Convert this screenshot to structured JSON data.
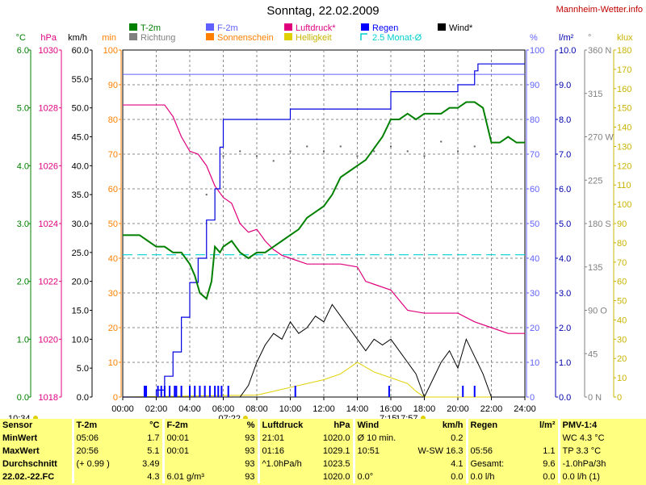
{
  "title": "Sonntag, 22.02.2009",
  "site": "Mannheim-Wetter.info",
  "legend": [
    {
      "label": "T-2m",
      "color": "#008000",
      "type": "box"
    },
    {
      "label": "Richtung",
      "color": "#808080",
      "type": "box"
    },
    {
      "label": "F-2m",
      "color": "#6060ff",
      "type": "box"
    },
    {
      "label": "Sonnenschein",
      "color": "#ff8000",
      "type": "box"
    },
    {
      "label": "Luftdruck*",
      "color": "#e0007e",
      "type": "box"
    },
    {
      "label": "Helligkeit",
      "color": "#e0d000",
      "type": "box"
    },
    {
      "label": "Regen",
      "color": "#0000ff",
      "type": "box"
    },
    {
      "label": "2.5 Monat-Ø",
      "color": "#00d0d0",
      "type": "bracket"
    },
    {
      "label": "Wind*",
      "color": "#000000",
      "type": "box"
    }
  ],
  "axis_units": {
    "temp": {
      "text": "°C",
      "color": "#008000"
    },
    "pressure": {
      "text": "hPa",
      "color": "#e0007e"
    },
    "wind": {
      "text": "km/h",
      "color": "#000000"
    },
    "sunmin": {
      "text": "min",
      "color": "#ff8000"
    },
    "humidity": {
      "text": "%",
      "color": "#6060ff"
    },
    "rain": {
      "text": "l/m²",
      "color": "#0000b0"
    },
    "dir": {
      "text": "°",
      "color": "#808080"
    },
    "lux": {
      "text": "klux",
      "color": "#c8b400"
    }
  },
  "axis_ticks": {
    "temp": [
      "0.0",
      "1.0",
      "2.0",
      "3.0",
      "4.0",
      "5.0",
      "6.0"
    ],
    "pressure": [
      "1018",
      "1020",
      "1022",
      "1024",
      "1026",
      "1028",
      "1030"
    ],
    "wind": [
      "0.0",
      "5.0",
      "10.0",
      "15.0",
      "20.0",
      "25.0",
      "30.0",
      "35.0",
      "40.0",
      "45.0",
      "50.0",
      "55.0",
      "60.0"
    ],
    "sunmin": [
      "0",
      "10",
      "20",
      "30",
      "40",
      "50",
      "60",
      "70",
      "80",
      "90",
      "100"
    ],
    "humidity": [
      "0",
      "10",
      "20",
      "30",
      "40",
      "50",
      "60",
      "70",
      "80",
      "90",
      "100"
    ],
    "rain": [
      "0.0",
      "1.0",
      "2.0",
      "3.0",
      "4.0",
      "5.0",
      "6.0",
      "7.0",
      "8.0",
      "9.0",
      "10.0"
    ],
    "dir": [
      "0 N",
      "45",
      "90 O",
      "135",
      "180 S",
      "225",
      "270 W",
      "315",
      "360 N"
    ],
    "lux": [
      "0",
      "10",
      "20",
      "30",
      "40",
      "50",
      "60",
      "70",
      "80",
      "90",
      "100",
      "110",
      "120",
      "130",
      "140",
      "150",
      "160",
      "170",
      "180"
    ],
    "time": [
      "00:00",
      "02:00",
      "04:00",
      "06:00",
      "08:00",
      "10:00",
      "12:00",
      "14:00",
      "16:00",
      "18:00",
      "20:00",
      "22:00",
      "24:00"
    ]
  },
  "markers": {
    "now": "10:34",
    "sunrise": "07:22",
    "sunset": "17:57",
    "mid": "7:15"
  },
  "chart_data": {
    "type": "line",
    "xlabel": "",
    "x_range_hours": [
      0,
      24
    ],
    "temperature_c": {
      "x": [
        0,
        1,
        1.5,
        2,
        2.5,
        3,
        3.5,
        4,
        4.3,
        4.6,
        5,
        5.1,
        5.3,
        5.5,
        5.8,
        6,
        6.5,
        7,
        7.5,
        8,
        8.5,
        9,
        9.5,
        10,
        10.5,
        11,
        11.5,
        12,
        12.5,
        13,
        13.5,
        14,
        14.5,
        15,
        15.5,
        16,
        16.5,
        17,
        17.5,
        18,
        18.5,
        19,
        19.5,
        20,
        20.5,
        21,
        21.5,
        22,
        22.5,
        23,
        23.5,
        24
      ],
      "y": [
        2.8,
        2.8,
        2.7,
        2.6,
        2.6,
        2.5,
        2.5,
        2.3,
        2.1,
        1.8,
        1.7,
        1.8,
        2.0,
        2.6,
        2.5,
        2.6,
        2.7,
        2.5,
        2.4,
        2.5,
        2.5,
        2.6,
        2.7,
        2.8,
        2.9,
        3.1,
        3.2,
        3.3,
        3.5,
        3.8,
        3.9,
        4.0,
        4.1,
        4.3,
        4.5,
        4.8,
        4.8,
        4.9,
        4.8,
        4.9,
        4.9,
        4.9,
        5.0,
        5.0,
        5.1,
        5.1,
        5.0,
        4.4,
        4.4,
        4.5,
        4.4,
        4.4
      ]
    },
    "humidity_pct": {
      "x": [
        0,
        24
      ],
      "y": [
        93,
        93
      ]
    },
    "pressure_hpa": {
      "x": [
        0,
        2.5,
        3,
        3.5,
        4,
        4.5,
        5,
        5.5,
        6,
        6.5,
        7,
        7.5,
        8,
        8.5,
        9,
        9.5,
        10,
        11,
        12,
        13,
        14,
        14.5,
        15,
        16,
        17,
        18,
        19,
        20,
        21,
        22,
        23,
        24
      ],
      "y": [
        1028.1,
        1028.1,
        1027.7,
        1027.0,
        1026.5,
        1026.4,
        1026.0,
        1025.3,
        1024.9,
        1024.7,
        1024.0,
        1023.7,
        1023.8,
        1023.4,
        1023.1,
        1022.9,
        1022.8,
        1022.6,
        1022.6,
        1022.6,
        1022.5,
        1022.0,
        1021.9,
        1021.7,
        1021.0,
        1020.9,
        1020.9,
        1020.9,
        1020.6,
        1020.4,
        1020.2,
        1020.2
      ]
    },
    "rain_cumulative_lm2": {
      "x": [
        0,
        1.8,
        2,
        2.5,
        3,
        3.5,
        4,
        4.5,
        5,
        5.5,
        5.8,
        6,
        6.5,
        7,
        8,
        10,
        11,
        12,
        13,
        14,
        15,
        16,
        17,
        18,
        19,
        20,
        21,
        21.2,
        23,
        24
      ],
      "y": [
        0,
        0,
        0.2,
        0.6,
        1.3,
        2.3,
        3.3,
        4.0,
        5.1,
        6.0,
        7.2,
        8.0,
        8.0,
        8.0,
        8.0,
        8.3,
        8.3,
        8.3,
        8.3,
        8.3,
        8.3,
        8.8,
        8.8,
        8.8,
        8.8,
        9.0,
        9.4,
        9.6,
        9.6,
        9.6
      ]
    },
    "rain_avg_2_5_month_lm2": 4.1,
    "wind_kmh": {
      "x": [
        0,
        7,
        7.5,
        8,
        8.5,
        9,
        9.5,
        10,
        10.5,
        11,
        11.5,
        12,
        12.5,
        13,
        13.5,
        14,
        14.5,
        15,
        15.5,
        16,
        16.5,
        17,
        17.5,
        18,
        18.5,
        19,
        19.5,
        20,
        20.5,
        21,
        21.5,
        22,
        24
      ],
      "y": [
        0,
        0,
        2,
        6,
        9,
        11,
        10,
        13,
        11,
        12,
        14,
        13,
        16,
        14,
        12,
        10,
        8,
        10,
        9,
        10,
        8,
        6,
        4,
        0,
        3,
        6,
        8,
        5,
        10,
        7,
        4,
        0,
        0
      ]
    },
    "brightness_klux": {
      "x": [
        0,
        8,
        9,
        10,
        11,
        12,
        13,
        14,
        15,
        16,
        17,
        17.5,
        18,
        24
      ],
      "y": [
        0,
        1,
        3,
        5,
        7,
        9,
        12,
        18,
        13,
        10,
        7,
        3,
        0,
        0
      ]
    },
    "sunshine_min": {
      "x": [
        0,
        24
      ],
      "y": [
        0,
        0
      ]
    },
    "wind_direction_deg": {
      "x": [
        5,
        6,
        7,
        8,
        9,
        10,
        11,
        12,
        13,
        14,
        15,
        16,
        17,
        18,
        19,
        20,
        21
      ],
      "y": [
        210,
        250,
        255,
        250,
        245,
        255,
        260,
        255,
        260,
        250,
        255,
        260,
        255,
        250,
        265,
        255,
        260
      ]
    }
  },
  "stats": {
    "headers": [
      {
        "name": "Sensor",
        "unit": ""
      },
      {
        "name": "T-2m",
        "unit": "°C"
      },
      {
        "name": "F-2m",
        "unit": "%"
      },
      {
        "name": "Luftdruck",
        "unit": "hPa"
      },
      {
        "name": "Wind",
        "unit": "km/h"
      },
      {
        "name": "Regen",
        "unit": "l/m²"
      },
      {
        "name": "PMV-1:4",
        "unit": ""
      }
    ],
    "rows": [
      {
        "label": "MinWert",
        "cells": [
          [
            "05:06",
            "1.7"
          ],
          [
            "00:01",
            "93"
          ],
          [
            "21:01",
            "1020.0"
          ],
          [
            "Ø 10 min.",
            "0.2"
          ],
          [
            "",
            ""
          ],
          [
            "WC 4.3 °C",
            ""
          ]
        ]
      },
      {
        "label": "MaxWert",
        "cells": [
          [
            "20:56",
            "5.1"
          ],
          [
            "00:01",
            "93"
          ],
          [
            "01:16",
            "1029.1"
          ],
          [
            "10:51",
            "W-SW 16.3"
          ],
          [
            "05:56",
            "1.1"
          ],
          [
            "TP 3.3 °C",
            ""
          ]
        ]
      },
      {
        "label": "Durchschnitt",
        "cells": [
          [
            "(+ 0.99 )",
            "3.49"
          ],
          [
            "",
            "93"
          ],
          [
            "^1.0hPa/h",
            "1023.5"
          ],
          [
            "",
            "4.1"
          ],
          [
            "Gesamt:",
            "9.6"
          ],
          [
            "-1.0hPa/3h",
            ""
          ]
        ]
      },
      {
        "label": "22.02.-22.FC",
        "cells": [
          [
            "",
            "4.3"
          ],
          [
            "6.01 g/m³",
            "93"
          ],
          [
            "",
            "1020.0"
          ],
          [
            "0.0°",
            "0.0"
          ],
          [
            "0.0 l/h",
            "0.0"
          ],
          [
            "0.0 l/h (1)",
            ""
          ]
        ]
      }
    ]
  }
}
